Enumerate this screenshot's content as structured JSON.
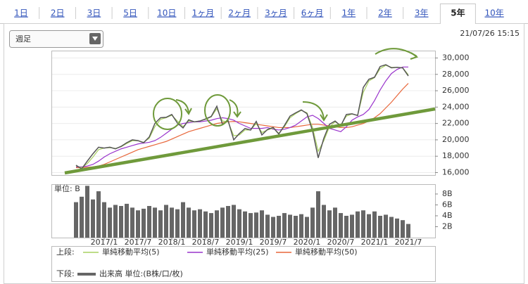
{
  "tabs": {
    "items": [
      "1日",
      "2日",
      "3日",
      "5日",
      "10日",
      "1ヶ月",
      "2ヶ月",
      "3ヶ月",
      "6ヶ月",
      "1年",
      "2年",
      "3年",
      "5年",
      "10年"
    ],
    "active": 12
  },
  "period_select": "週足",
  "timestamp": "21/07/26 15:15",
  "chart_data": [
    {
      "type": "line",
      "legend_label": "上段:",
      "color": "#555555",
      "x": [
        "2016/8",
        "2016/9",
        "2016/10",
        "2016/11",
        "2016/12",
        "2017/1",
        "2017/2",
        "2017/3",
        "2017/4",
        "2017/5",
        "2017/6",
        "2017/7",
        "2017/8",
        "2017/9",
        "2017/10",
        "2017/11",
        "2017/12",
        "2018/1",
        "2018/2",
        "2018/3",
        "2018/4",
        "2018/5",
        "2018/6",
        "2018/7",
        "2018/8",
        "2018/9",
        "2018/10",
        "2018/11",
        "2018/12",
        "2019/1",
        "2019/2",
        "2019/3",
        "2019/4",
        "2019/5",
        "2019/6",
        "2019/7",
        "2019/8",
        "2019/9",
        "2019/10",
        "2019/11",
        "2019/12",
        "2020/1",
        "2020/2",
        "2020/3",
        "2020/4",
        "2020/5",
        "2020/6",
        "2020/7",
        "2020/8",
        "2020/9",
        "2020/10",
        "2020/11",
        "2020/12",
        "2021/1",
        "2021/2",
        "2021/3",
        "2021/4",
        "2021/5",
        "2021/6",
        "2021/7"
      ],
      "values": [
        16900,
        16450,
        17400,
        18300,
        19100,
        19000,
        19100,
        18900,
        19200,
        19650,
        20000,
        19900,
        19650,
        20350,
        22000,
        22700,
        22750,
        23100,
        22050,
        21450,
        22450,
        22200,
        22300,
        22550,
        22850,
        24100,
        21900,
        22350,
        20000,
        20770,
        21380,
        21200,
        22250,
        20600,
        21270,
        21520,
        20700,
        21750,
        22900,
        23300,
        23650,
        23200,
        21100,
        17800,
        20200,
        21900,
        22300,
        21700,
        23100,
        23180,
        22970,
        26400,
        27400,
        27650,
        28960,
        29180,
        28800,
        28860,
        28790,
        27800
      ],
      "series": [
        {
          "name": "単純移動平均(5)",
          "color": "#a8d060",
          "values": [
            16800,
            16600,
            17100,
            17900,
            18800,
            19000,
            19050,
            18950,
            19150,
            19550,
            19900,
            19900,
            19700,
            20200,
            21600,
            22500,
            22700,
            23000,
            22300,
            21600,
            22300,
            22200,
            22300,
            22500,
            22800,
            23800,
            22300,
            22200,
            20500,
            20600,
            21200,
            21200,
            22000,
            20900,
            21200,
            21450,
            20800,
            21600,
            22700,
            23200,
            23600,
            23300,
            21500,
            18600,
            19900,
            21600,
            22200,
            21800,
            22900,
            23150,
            23000,
            25800,
            27200,
            27600,
            28700,
            29100,
            28850,
            28850,
            28800,
            27950
          ]
        },
        {
          "name": "単純移動平均(25)",
          "color": "#9933cc",
          "values": [
            16700,
            16700,
            16800,
            17000,
            17400,
            17900,
            18300,
            18600,
            18900,
            19100,
            19300,
            19500,
            19600,
            19700,
            19900,
            20300,
            20800,
            21300,
            21800,
            22000,
            22100,
            22200,
            22200,
            22300,
            22400,
            22600,
            22700,
            22600,
            22400,
            22000,
            21700,
            21400,
            21400,
            21400,
            21500,
            21300,
            21200,
            21300,
            21500,
            21800,
            22300,
            22800,
            23000,
            22600,
            22000,
            21400,
            21200,
            21000,
            21600,
            22400,
            22800,
            23100,
            23700,
            24800,
            26100,
            27200,
            28100,
            28600,
            28900,
            28900
          ]
        },
        {
          "name": "単純移動平均(50)",
          "color": "#e8663a",
          "values": [
            16600,
            16600,
            16650,
            16700,
            16800,
            17000,
            17300,
            17600,
            17900,
            18200,
            18500,
            18800,
            19000,
            19200,
            19400,
            19600,
            19800,
            20100,
            20400,
            20700,
            21000,
            21200,
            21400,
            21600,
            21800,
            22000,
            22100,
            22200,
            22250,
            22200,
            22100,
            22000,
            21900,
            21800,
            21700,
            21600,
            21500,
            21500,
            21500,
            21600,
            21700,
            21800,
            21900,
            21900,
            21800,
            21700,
            21600,
            21500,
            21500,
            21600,
            21800,
            22000,
            22300,
            22700,
            23200,
            23900,
            24600,
            25400,
            26200,
            26900
          ]
        }
      ],
      "ylim": [
        15700,
        30900
      ],
      "yticks": [
        {
          "value": 16000,
          "label": "16,000"
        },
        {
          "value": 18000,
          "label": "18,000"
        },
        {
          "value": 20000,
          "label": "20,000"
        },
        {
          "value": 22000,
          "label": "22,000"
        },
        {
          "value": 24000,
          "label": "24,000"
        },
        {
          "value": 26000,
          "label": "26,000"
        },
        {
          "value": 28000,
          "label": "28,000"
        },
        {
          "value": 30000,
          "label": "30,000"
        }
      ],
      "grid": true
    },
    {
      "type": "bar",
      "legend_label": "下段:",
      "unit_label": "単位: B",
      "name": "出来高 単位:(B株/口/枚)",
      "color": "#666666",
      "x": [
        "2016/8",
        "2016/9",
        "2016/10",
        "2016/11",
        "2016/12",
        "2017/1",
        "2017/2",
        "2017/3",
        "2017/4",
        "2017/5",
        "2017/6",
        "2017/7",
        "2017/8",
        "2017/9",
        "2017/10",
        "2017/11",
        "2017/12",
        "2018/1",
        "2018/2",
        "2018/3",
        "2018/4",
        "2018/5",
        "2018/6",
        "2018/7",
        "2018/8",
        "2018/9",
        "2018/10",
        "2018/11",
        "2018/12",
        "2019/1",
        "2019/2",
        "2019/3",
        "2019/4",
        "2019/5",
        "2019/6",
        "2019/7",
        "2019/8",
        "2019/9",
        "2019/10",
        "2019/11",
        "2019/12",
        "2020/1",
        "2020/2",
        "2020/3",
        "2020/4",
        "2020/5",
        "2020/6",
        "2020/7",
        "2020/8",
        "2020/9",
        "2020/10",
        "2020/11",
        "2020/12",
        "2021/1",
        "2021/2",
        "2021/3",
        "2021/4",
        "2021/5",
        "2021/6",
        "2021/7"
      ],
      "values": [
        6.5,
        7.5,
        9.5,
        7.0,
        8.5,
        6.5,
        5.5,
        6.0,
        5.8,
        6.2,
        5.5,
        5.0,
        5.3,
        5.8,
        5.5,
        5.0,
        6.0,
        5.5,
        5.2,
        6.5,
        5.5,
        5.0,
        5.2,
        4.8,
        4.5,
        5.0,
        5.5,
        5.8,
        6.0,
        5.2,
        4.8,
        4.5,
        4.6,
        5.0,
        4.2,
        3.8,
        4.0,
        4.5,
        4.2,
        4.0,
        4.3,
        3.8,
        5.5,
        8.5,
        6.0,
        5.0,
        5.5,
        4.5,
        4.0,
        4.2,
        4.8,
        5.0,
        4.3,
        4.8,
        4.0,
        4.2,
        3.8,
        3.5,
        3.2,
        2.5
      ],
      "ylim": [
        0,
        9.8
      ],
      "yticks": [
        {
          "value": 2,
          "label": "2B"
        },
        {
          "value": 4,
          "label": "4B"
        },
        {
          "value": 6,
          "label": "6B"
        },
        {
          "value": 8,
          "label": "8B"
        }
      ],
      "xticks": [
        "2017/1",
        "2017/7",
        "2018/1",
        "2018/7",
        "2019/1",
        "2019/7",
        "2020/1",
        "2020/7",
        "2021/1",
        "2021/7"
      ]
    }
  ]
}
